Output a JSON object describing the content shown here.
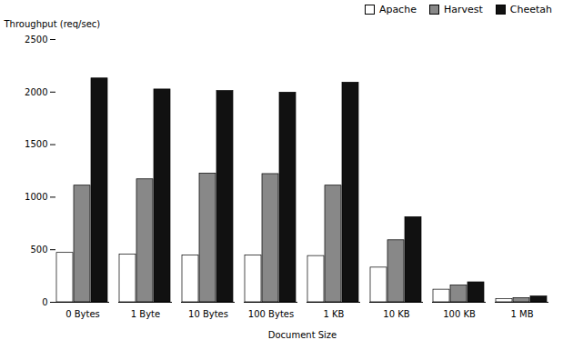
{
  "chart_data": {
    "type": "bar",
    "categories": [
      "0 Bytes",
      "1 Byte",
      "10 Bytes",
      "100 Bytes",
      "1 KB",
      "10 KB",
      "100 KB",
      "1 MB"
    ],
    "series": [
      {
        "name": "Apache",
        "color": "#ffffff",
        "values": [
          470,
          455,
          445,
          445,
          440,
          330,
          120,
          30
        ]
      },
      {
        "name": "Harvest",
        "color": "#888888",
        "values": [
          1110,
          1170,
          1225,
          1220,
          1110,
          590,
          160,
          40
        ]
      },
      {
        "name": "Cheetah",
        "color": "#111111",
        "values": [
          2130,
          2025,
          2010,
          1995,
          2090,
          810,
          190,
          55
        ]
      }
    ],
    "xlabel": "Document Size",
    "ylabel": "Throughput (req/sec)",
    "ylim": [
      0,
      2500
    ],
    "yticks": [
      0,
      500,
      1000,
      1500,
      2000,
      2500
    ],
    "grid": false,
    "legend": "upper right"
  }
}
